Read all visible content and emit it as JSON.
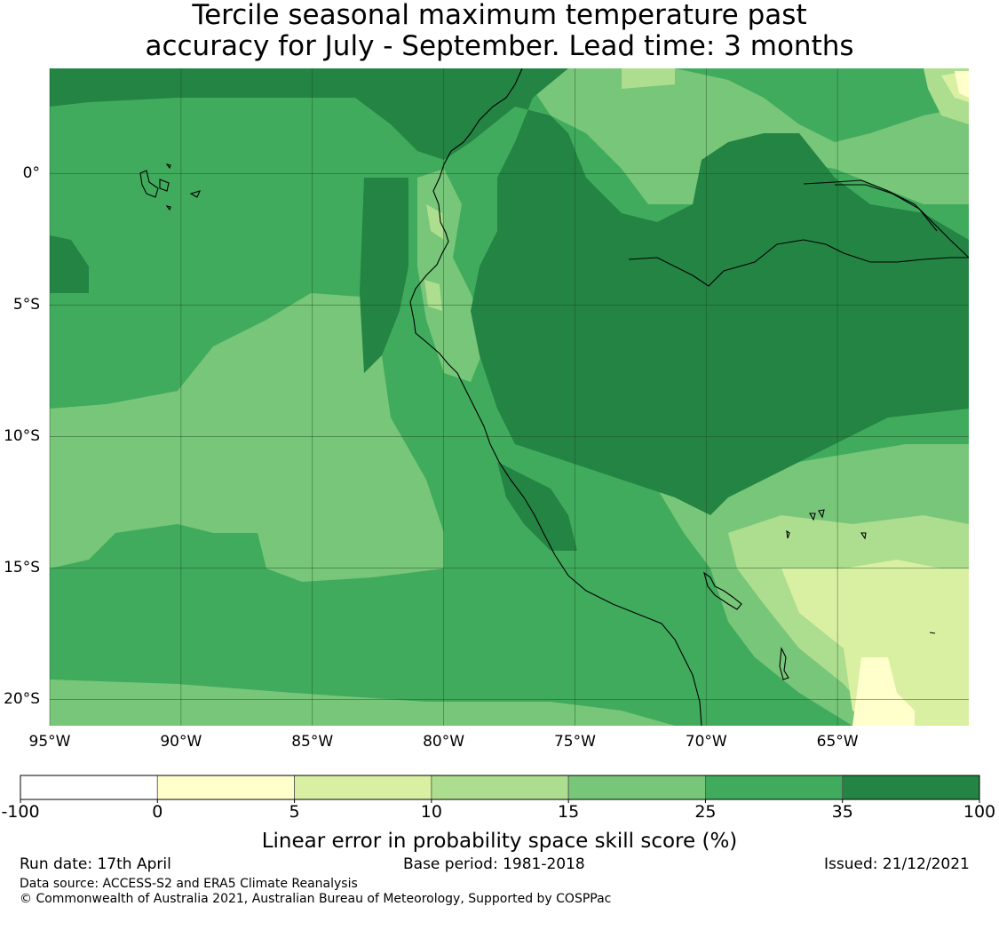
{
  "title_line1": "Tercile seasonal maximum temperature past",
  "title_line2": "accuracy for July - September. Lead time: 3 months",
  "map": {
    "lon_ticks": [
      "95°W",
      "90°W",
      "85°W",
      "80°W",
      "75°W",
      "70°W",
      "65°W"
    ],
    "lat_ticks": [
      "0°",
      "5°S",
      "10°S",
      "15°S",
      "20°S"
    ],
    "extent_lon": [
      -95,
      -60
    ],
    "extent_lat": [
      -21,
      4
    ]
  },
  "colorbar": {
    "label": "Linear error in probability space skill score (%)",
    "ticks": [
      "-100",
      "0",
      "5",
      "10",
      "15",
      "25",
      "35",
      "100"
    ],
    "colors": [
      "#ffffff",
      "#ffffcc",
      "#d9f0a3",
      "#addd8e",
      "#78c679",
      "#41ab5d",
      "#238443"
    ]
  },
  "footer": {
    "run_date": "Run date: 17th April",
    "base_period": "Base period: 1981-2018",
    "issued": "Issued: 21/12/2021",
    "data_source": "Data source: ACCESS-S2 and ERA5 Climate Reanalysis",
    "copyright": "© Commonwealth of Australia 2021, Australian Bureau of Meteorology, Supported by COSPPac"
  }
}
